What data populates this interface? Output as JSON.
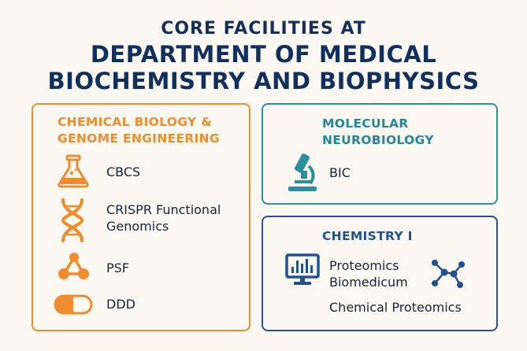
{
  "title": {
    "line1": "CORE FACILITIES AT",
    "line2": "DEPARTMENT OF MEDICAL",
    "line3": "BIOCHEMISTRY AND BIOPHYSICS"
  },
  "panels": {
    "chemical_biology": {
      "heading_line1": "CHEMICAL BIOLOGY &",
      "heading_line2": "GENOME ENGINEERING",
      "color": "#ef8c2e",
      "items": [
        {
          "label": "CBCS",
          "icon": "flask-icon"
        },
        {
          "label_line1": "CRISPR Functional",
          "label_line2": "Genomics",
          "icon": "dna-icon"
        },
        {
          "label": "PSF",
          "icon": "molecule-icon"
        },
        {
          "label": "DDD",
          "icon": "capsule-icon"
        }
      ]
    },
    "molecular_neurobiology": {
      "heading_line1": "MOLECULAR",
      "heading_line2": "NEUROBIOLOGY",
      "color": "#2b8fa0",
      "items": [
        {
          "label": "BIC",
          "icon": "microscope-icon"
        }
      ]
    },
    "chemistry": {
      "heading": "CHEMISTRY I",
      "color": "#2a4f8f",
      "items": [
        {
          "label_line1": "Proteomics",
          "label_line2": "Biomedicum",
          "icon": "monitor-chart-icon"
        },
        {
          "label": "Chemical Proteomics",
          "icon": "network-molecule-icon"
        }
      ]
    }
  }
}
